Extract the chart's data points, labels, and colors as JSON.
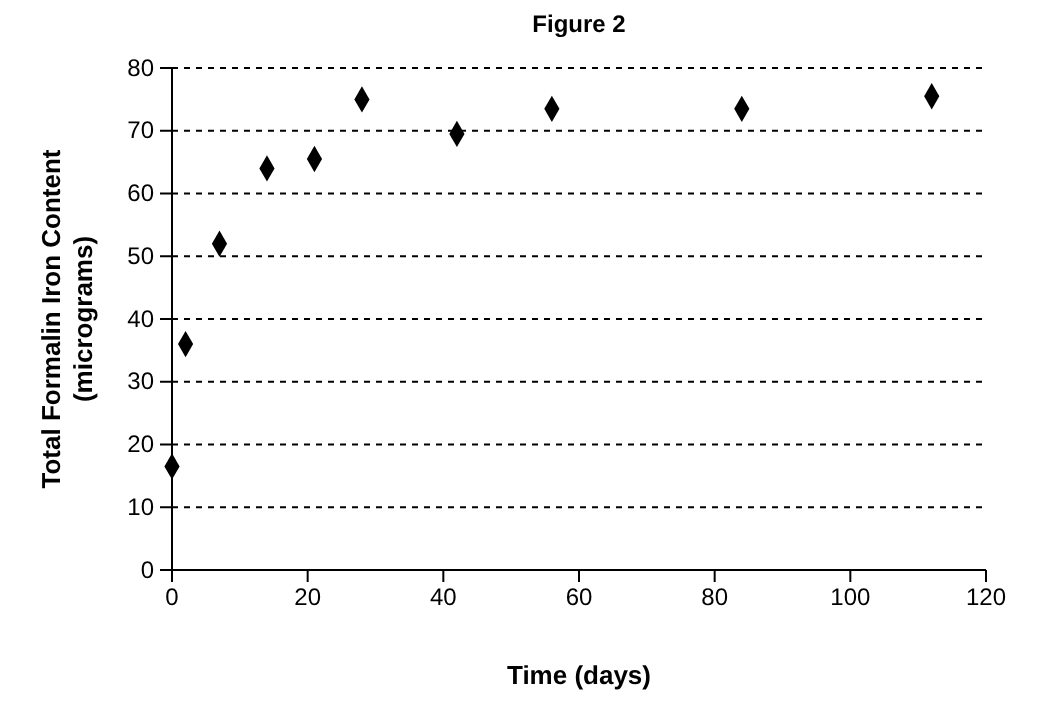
{
  "chart_data": {
    "type": "scatter",
    "title": "Figure 2",
    "xlabel": "Time (days)",
    "ylabel": "Total Formalin Iron Content\n(micrograms)",
    "x": [
      0,
      2,
      7,
      14,
      21,
      28,
      42,
      56,
      84,
      112
    ],
    "series": [
      {
        "color": "#000000",
        "values": [
          16.5,
          36,
          52,
          64,
          65.5,
          75,
          69.5,
          73.5,
          73.5,
          75.5
        ]
      }
    ],
    "xlim": [
      0,
      120
    ],
    "xticks": [
      0,
      20,
      40,
      60,
      80,
      100,
      120
    ],
    "ylim": [
      0,
      80
    ],
    "yticks": [
      0,
      10,
      20,
      30,
      40,
      50,
      60,
      70,
      80
    ],
    "grid": "y",
    "marker": "diamond"
  }
}
